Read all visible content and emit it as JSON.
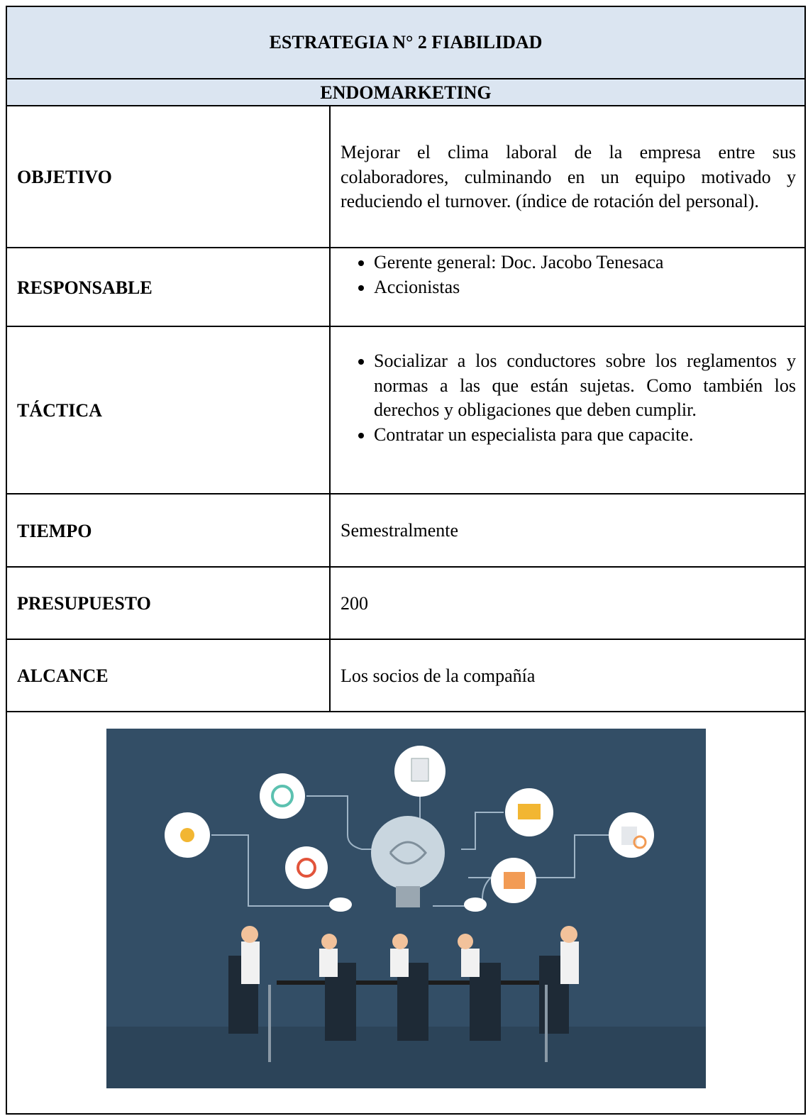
{
  "header": {
    "title": "ESTRATEGIA N° 2 FIABILIDAD",
    "subtitle": "ENDOMARKETING"
  },
  "rows": [
    {
      "label": "OBJETIVO",
      "text": "Mejorar el clima laboral de la empresa entre sus colaboradores, culminando en un equipo motivado y reduciendo el turnover. (índice de rotación del personal)."
    },
    {
      "label": "RESPONSABLE",
      "items": [
        "Gerente general: Doc. Jacobo Tenesaca",
        "Accionistas"
      ]
    },
    {
      "label": "TÁCTICA",
      "items": [
        "Socializar a los conductores sobre los reglamentos y normas a las que están sujetas. Como también los derechos y obligaciones que deben cumplir.",
        "Contratar un especialista para que capacite."
      ]
    },
    {
      "label": "TIEMPO",
      "text": "Semestralmente"
    },
    {
      "label": "PRESUPUESTO",
      "text": 200
    },
    {
      "label": "ALCANCE",
      "text": "Los socios de la compañía"
    }
  ]
}
